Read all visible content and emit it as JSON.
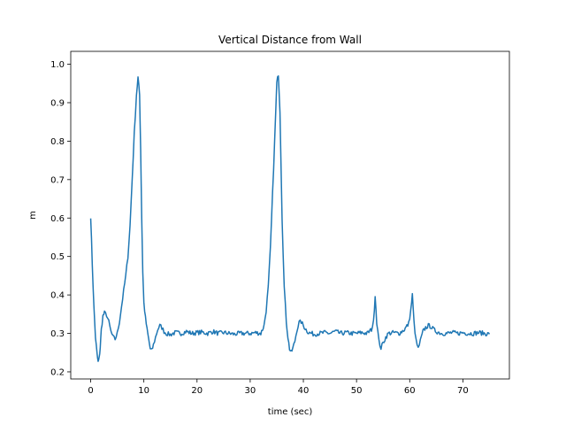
{
  "chart_data": {
    "type": "line",
    "title": "Vertical Distance from Wall",
    "xlabel": "time (sec)",
    "ylabel": "m",
    "xlim": [
      -3.75,
      78.75
    ],
    "ylim": [
      0.1815,
      1.0335
    ],
    "xticks": [
      0,
      10,
      20,
      30,
      40,
      50,
      60,
      70
    ],
    "yticks": [
      0.2,
      0.3,
      0.4,
      0.5,
      0.6,
      0.7,
      0.8,
      0.9,
      1.0
    ],
    "grid": false,
    "legend": "none",
    "series": [
      {
        "color": "#1f77b4",
        "x": [
          0,
          0.3,
          0.6,
          0.9,
          1.2,
          1.4,
          1.6,
          1.8,
          2.0,
          2.3,
          2.6,
          3.0,
          3.4,
          3.8,
          4.2,
          4.6,
          5.0,
          5.4,
          5.8,
          6.2,
          6.6,
          7.0,
          7.4,
          7.8,
          8.2,
          8.6,
          8.9,
          9.2,
          9.4,
          9.6,
          9.8,
          10.0,
          10.3,
          10.6,
          10.9,
          11.2,
          11.5,
          11.8,
          12.2,
          12.6,
          13.0,
          13.4,
          13.8,
          14.2,
          14.6,
          15.0,
          15.5,
          16.0,
          17,
          18,
          19,
          20,
          21,
          22,
          23,
          24,
          25,
          26,
          27,
          28,
          29,
          30,
          31,
          32,
          32.6,
          33.0,
          33.4,
          33.8,
          34.2,
          34.6,
          35.0,
          35.3,
          35.6,
          36.0,
          36.4,
          36.8,
          37.1,
          37.4,
          37.7,
          38.0,
          38.4,
          38.8,
          39.2,
          39.6,
          40.0,
          40.5,
          41,
          42,
          43,
          44,
          45,
          46,
          47,
          48,
          49,
          50,
          51,
          52,
          52.8,
          53.2,
          53.5,
          53.8,
          54.2,
          54.6,
          55.0,
          55.5,
          56,
          57,
          58,
          59,
          59.8,
          60.2,
          60.5,
          60.8,
          61.2,
          61.6,
          62.0,
          62.5,
          63,
          63.5,
          64,
          64.5,
          65,
          66,
          67,
          68,
          69,
          70,
          71,
          72,
          73,
          74,
          75
        ],
        "y": [
          0.605,
          0.48,
          0.37,
          0.29,
          0.245,
          0.225,
          0.235,
          0.265,
          0.31,
          0.345,
          0.353,
          0.348,
          0.33,
          0.305,
          0.29,
          0.285,
          0.3,
          0.33,
          0.37,
          0.41,
          0.45,
          0.5,
          0.58,
          0.7,
          0.82,
          0.92,
          0.965,
          0.92,
          0.78,
          0.6,
          0.46,
          0.38,
          0.34,
          0.31,
          0.285,
          0.26,
          0.255,
          0.27,
          0.29,
          0.31,
          0.32,
          0.315,
          0.305,
          0.3,
          0.298,
          0.297,
          0.3,
          0.302,
          0.3,
          0.305,
          0.3,
          0.302,
          0.303,
          0.3,
          0.305,
          0.3,
          0.302,
          0.3,
          0.298,
          0.3,
          0.3,
          0.3,
          0.302,
          0.3,
          0.32,
          0.36,
          0.42,
          0.52,
          0.66,
          0.8,
          0.95,
          0.975,
          0.88,
          0.6,
          0.42,
          0.33,
          0.29,
          0.26,
          0.25,
          0.26,
          0.28,
          0.31,
          0.328,
          0.33,
          0.32,
          0.31,
          0.302,
          0.298,
          0.3,
          0.302,
          0.3,
          0.305,
          0.3,
          0.302,
          0.3,
          0.3,
          0.302,
          0.3,
          0.31,
          0.33,
          0.4,
          0.33,
          0.28,
          0.262,
          0.275,
          0.29,
          0.3,
          0.302,
          0.3,
          0.31,
          0.325,
          0.36,
          0.4,
          0.33,
          0.28,
          0.26,
          0.28,
          0.305,
          0.315,
          0.32,
          0.318,
          0.31,
          0.305,
          0.3,
          0.3,
          0.302,
          0.3,
          0.302,
          0.3,
          0.3,
          0.302,
          0.3,
          0.298
        ]
      }
    ]
  }
}
